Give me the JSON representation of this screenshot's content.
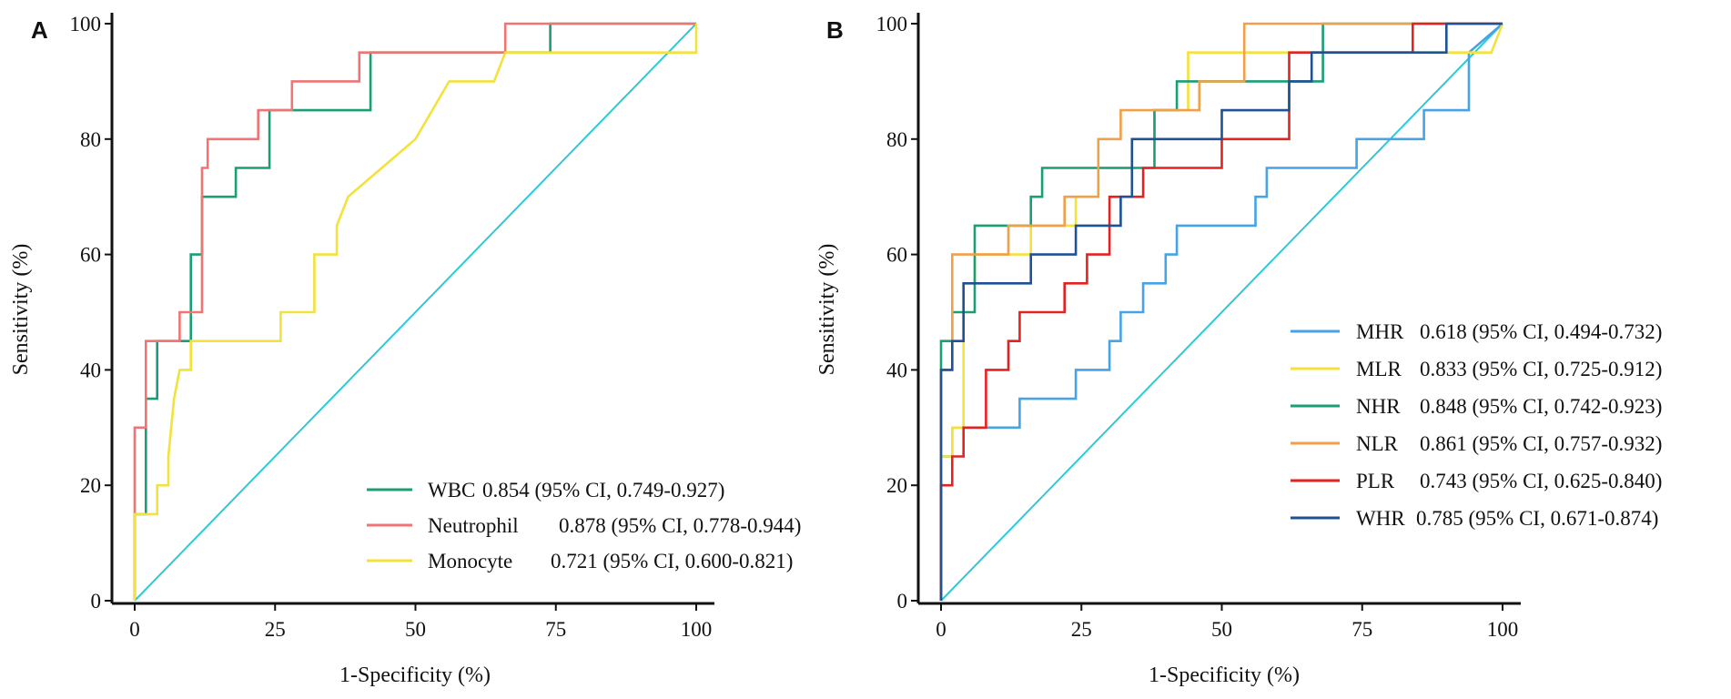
{
  "chart_data": [
    {
      "panel": "A",
      "type": "line",
      "xlabel": "1-Specificity (%)",
      "ylabel": "Sensitivity (%)",
      "xlim": [
        0,
        100
      ],
      "ylim": [
        0,
        100
      ],
      "xticks": [
        0,
        25,
        50,
        75,
        100
      ],
      "yticks": [
        0,
        20,
        40,
        60,
        80,
        100
      ],
      "legend_position": "lower-right",
      "reference_line": {
        "color": "#2ec9d6",
        "x": [
          0,
          100
        ],
        "y": [
          0,
          100
        ]
      },
      "series": [
        {
          "name": "WBC",
          "auc_text": "0.854 (95% CI, 0.749-0.927)",
          "color": "#1a9e76",
          "x": [
            0,
            0,
            2,
            2,
            4,
            4,
            10,
            10,
            12,
            12,
            18,
            18,
            24,
            24,
            30,
            30,
            42,
            42,
            66,
            66,
            74,
            74,
            100
          ],
          "y": [
            0,
            15,
            15,
            35,
            35,
            45,
            45,
            60,
            60,
            70,
            70,
            75,
            75,
            85,
            85,
            85,
            85,
            95,
            95,
            95,
            95,
            100,
            100
          ]
        },
        {
          "name": "Neutrophil",
          "auc_text": "0.878 (95% CI, 0.778-0.944)",
          "color": "#f07474",
          "x": [
            0,
            0,
            2,
            2,
            6,
            6,
            8,
            8,
            12,
            12,
            13,
            13,
            14,
            14,
            22,
            22,
            28,
            28,
            40,
            40,
            66,
            66,
            100
          ],
          "y": [
            0,
            30,
            30,
            45,
            45,
            45,
            45,
            50,
            50,
            75,
            75,
            80,
            80,
            80,
            80,
            85,
            85,
            90,
            90,
            95,
            95,
            100,
            100
          ]
        },
        {
          "name": "Monocyte",
          "auc_text": "0.721 (95% CI, 0.600-0.821)",
          "color": "#f2e23a",
          "x": [
            0,
            0,
            4,
            4,
            6,
            6,
            7,
            8,
            10,
            10,
            26,
            26,
            32,
            32,
            36,
            36,
            38,
            44,
            50,
            56,
            64,
            66,
            100,
            100
          ],
          "y": [
            0,
            15,
            15,
            20,
            20,
            25,
            35,
            40,
            40,
            45,
            45,
            50,
            50,
            60,
            60,
            65,
            70,
            75,
            80,
            90,
            90,
            95,
            95,
            100
          ]
        }
      ]
    },
    {
      "panel": "B",
      "type": "line",
      "xlabel": "1-Specificity (%)",
      "ylabel": "Sensitivity (%)",
      "xlim": [
        0,
        100
      ],
      "ylim": [
        0,
        100
      ],
      "xticks": [
        0,
        25,
        50,
        75,
        100
      ],
      "yticks": [
        0,
        20,
        40,
        60,
        80,
        100
      ],
      "legend_position": "lower-right",
      "reference_line": {
        "color": "#2ec9d6",
        "x": [
          0,
          100
        ],
        "y": [
          0,
          100
        ]
      },
      "series": [
        {
          "name": "MHR",
          "auc_text": "0.618 (95% CI, 0.494-0.732)",
          "color": "#45a3e6",
          "x": [
            0,
            0,
            2,
            2,
            8,
            8,
            14,
            14,
            24,
            24,
            30,
            30,
            32,
            32,
            34,
            34,
            36,
            36,
            38,
            38,
            40,
            40,
            42,
            42,
            56,
            56,
            58,
            58,
            64,
            64,
            66,
            66,
            74,
            74,
            86,
            86,
            94,
            94,
            100
          ],
          "y": [
            0,
            25,
            25,
            30,
            30,
            30,
            30,
            35,
            35,
            40,
            40,
            45,
            45,
            50,
            50,
            50,
            50,
            55,
            55,
            55,
            55,
            60,
            60,
            65,
            65,
            70,
            70,
            75,
            75,
            75,
            75,
            75,
            75,
            80,
            80,
            85,
            85,
            95,
            100
          ]
        },
        {
          "name": "MLR",
          "auc_text": "0.833 (95% CI, 0.725-0.912)",
          "color": "#f2e23a",
          "x": [
            0,
            0,
            2,
            2,
            4,
            4,
            6,
            6,
            16,
            16,
            24,
            24,
            28,
            28,
            34,
            34,
            38,
            38,
            44,
            44,
            98,
            98,
            100
          ],
          "y": [
            0,
            25,
            25,
            30,
            30,
            55,
            55,
            60,
            60,
            65,
            65,
            70,
            70,
            75,
            75,
            80,
            80,
            85,
            85,
            95,
            95,
            95,
            100
          ]
        },
        {
          "name": "NHR",
          "auc_text": "0.848 (95% CI, 0.742-0.923)",
          "color": "#1a9e76",
          "x": [
            0,
            0,
            2,
            2,
            6,
            6,
            16,
            16,
            18,
            18,
            24,
            24,
            38,
            38,
            42,
            42,
            54,
            54,
            68,
            68,
            100
          ],
          "y": [
            0,
            45,
            45,
            50,
            50,
            65,
            65,
            70,
            70,
            75,
            75,
            75,
            75,
            85,
            85,
            90,
            90,
            90,
            90,
            100,
            100
          ]
        },
        {
          "name": "NLR",
          "auc_text": "0.861 (95% CI, 0.757-0.932)",
          "color": "#f0a04a",
          "x": [
            0,
            0,
            2,
            2,
            12,
            12,
            22,
            22,
            28,
            28,
            32,
            32,
            44,
            44,
            46,
            46,
            54,
            54,
            100
          ],
          "y": [
            0,
            40,
            40,
            60,
            60,
            65,
            65,
            70,
            70,
            80,
            80,
            85,
            85,
            85,
            85,
            90,
            90,
            100,
            100
          ]
        },
        {
          "name": "PLR",
          "auc_text": "0.743 (95% CI, 0.625-0.840)",
          "color": "#e32222",
          "x": [
            0,
            0,
            2,
            2,
            4,
            4,
            8,
            8,
            12,
            12,
            14,
            14,
            22,
            22,
            24,
            24,
            26,
            26,
            30,
            30,
            32,
            32,
            36,
            36,
            50,
            50,
            56,
            56,
            62,
            62,
            84,
            84,
            100
          ],
          "y": [
            0,
            20,
            20,
            25,
            25,
            30,
            30,
            40,
            40,
            45,
            45,
            50,
            50,
            55,
            55,
            55,
            55,
            60,
            60,
            70,
            70,
            70,
            70,
            75,
            75,
            80,
            80,
            80,
            80,
            95,
            95,
            100,
            100
          ]
        },
        {
          "name": "WHR",
          "auc_text": "0.785 (95% CI, 0.671-0.874)",
          "color": "#1f5294",
          "x": [
            0,
            0,
            2,
            2,
            4,
            4,
            16,
            16,
            24,
            24,
            32,
            32,
            34,
            34,
            40,
            40,
            50,
            50,
            62,
            62,
            66,
            66,
            90,
            90,
            100
          ],
          "y": [
            0,
            40,
            40,
            45,
            45,
            55,
            55,
            60,
            60,
            65,
            65,
            70,
            70,
            80,
            80,
            80,
            80,
            85,
            85,
            90,
            90,
            95,
            95,
            100,
            100
          ]
        }
      ]
    }
  ]
}
